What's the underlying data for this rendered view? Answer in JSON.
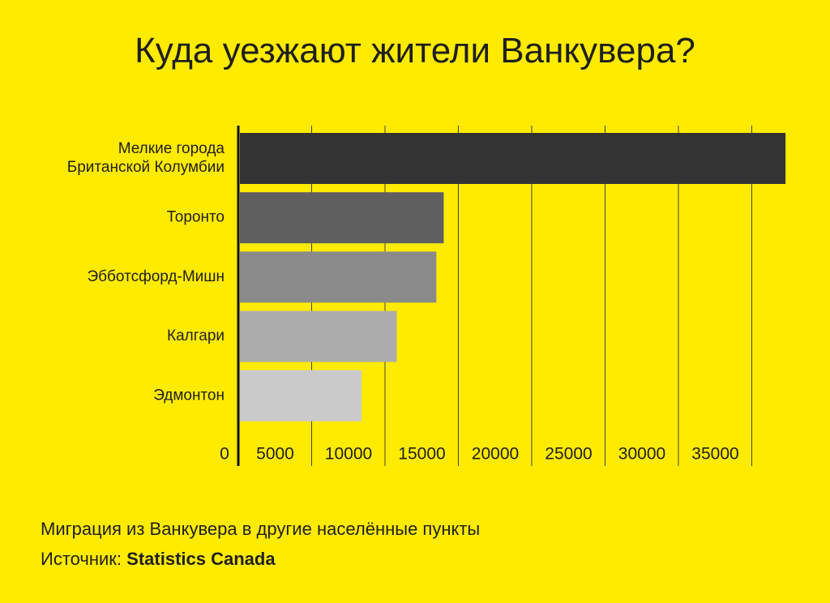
{
  "chart_data": {
    "type": "bar",
    "orientation": "horizontal",
    "title": "Куда уезжают жители Ванкувера?",
    "categories": [
      [
        "Мелкие города",
        "Британской Колумбии"
      ],
      [
        "Торонто"
      ],
      [
        "Эбботсфорд-Мишн"
      ],
      [
        "Калгари"
      ],
      [
        "Эдмонтон"
      ]
    ],
    "values": [
      37300,
      14000,
      13500,
      10800,
      8400
    ],
    "bar_colors": [
      "#333333",
      "#5f5f5f",
      "#8a8a8a",
      "#acacac",
      "#cacaca"
    ],
    "xlim": [
      0,
      37500
    ],
    "xticks": [
      0,
      5000,
      10000,
      15000,
      20000,
      25000,
      30000,
      35000
    ],
    "grid": true
  },
  "caption": "Миграция из Ванкувера в другие населённые пункты",
  "source_label": "Источник:",
  "source_name": "Statistics Canada",
  "colors": {
    "background": "#FFEB00",
    "axis": "#111111",
    "grid": "#444444"
  }
}
